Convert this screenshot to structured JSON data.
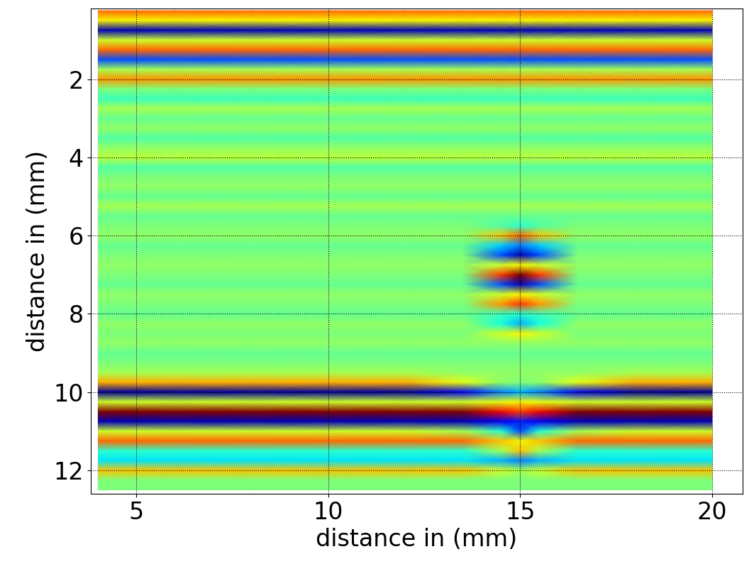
{
  "chart_data": {
    "type": "heatmap",
    "x_label": "distance in (mm)",
    "y_label": "distance in (mm)",
    "xlim": [
      3.8,
      20.8
    ],
    "ylim": [
      12.6,
      0.2
    ],
    "xticks": [
      5,
      10,
      15,
      20
    ],
    "yticks": [
      2,
      4,
      6,
      8,
      10,
      12
    ],
    "grid": true,
    "color": "jet",
    "value_range": [
      -1,
      1
    ],
    "x": [
      4,
      6,
      8,
      10,
      12,
      13.5,
      14.5,
      15,
      15.5,
      16.5,
      18,
      20
    ],
    "y": [
      0.25,
      0.5,
      0.75,
      1.0,
      1.25,
      1.5,
      1.75,
      2.0,
      2.25,
      2.5,
      2.75,
      3.0,
      3.25,
      3.5,
      3.75,
      4.0,
      4.25,
      4.5,
      4.75,
      5.0,
      5.25,
      5.5,
      5.75,
      6.0,
      6.25,
      6.5,
      6.75,
      7.0,
      7.25,
      7.5,
      7.75,
      8.0,
      8.25,
      8.5,
      8.75,
      9.0,
      9.25,
      9.5,
      9.75,
      10.0,
      10.25,
      10.5,
      10.75,
      11.0,
      11.25,
      11.5,
      11.75,
      12.0,
      12.25,
      12.5
    ],
    "cells": [
      [
        0.6,
        0.6,
        0.6,
        0.6,
        0.6,
        0.6,
        0.6,
        0.6,
        0.6,
        0.6,
        0.6,
        0.6
      ],
      [
        0.3,
        0.3,
        0.3,
        0.3,
        0.3,
        0.3,
        0.3,
        0.3,
        0.3,
        0.3,
        0.3,
        0.3
      ],
      [
        -0.9,
        -0.9,
        -0.9,
        -0.9,
        -0.9,
        -0.9,
        -0.9,
        -0.9,
        -0.9,
        -0.9,
        -0.9,
        -0.9
      ],
      [
        0.2,
        0.2,
        0.2,
        0.2,
        0.2,
        0.2,
        0.2,
        0.2,
        0.2,
        0.2,
        0.2,
        0.2
      ],
      [
        0.6,
        0.6,
        0.6,
        0.6,
        0.6,
        0.6,
        0.6,
        0.6,
        0.6,
        0.6,
        0.6,
        0.6
      ],
      [
        -0.6,
        -0.6,
        -0.6,
        -0.6,
        -0.6,
        -0.6,
        -0.6,
        -0.6,
        -0.6,
        -0.6,
        -0.6,
        -0.6
      ],
      [
        0.1,
        0.1,
        0.1,
        0.1,
        0.1,
        0.1,
        0.1,
        0.1,
        0.1,
        0.1,
        0.1,
        0.1
      ],
      [
        0.5,
        0.5,
        0.5,
        0.5,
        0.5,
        0.5,
        0.5,
        0.5,
        0.5,
        0.5,
        0.5,
        0.5
      ],
      [
        0.0,
        0.0,
        0.0,
        0.0,
        0.0,
        0.0,
        0.0,
        0.0,
        0.0,
        0.0,
        0.0,
        0.0
      ],
      [
        -0.15,
        -0.15,
        -0.15,
        -0.15,
        -0.15,
        -0.15,
        -0.15,
        -0.15,
        -0.15,
        -0.15,
        -0.15,
        -0.15
      ],
      [
        0.1,
        0.1,
        0.1,
        0.1,
        0.1,
        0.1,
        0.1,
        0.1,
        0.1,
        0.1,
        0.1,
        0.1
      ],
      [
        -0.05,
        -0.05,
        -0.05,
        -0.05,
        -0.05,
        -0.05,
        -0.05,
        -0.05,
        -0.05,
        -0.05,
        -0.05,
        -0.05
      ],
      [
        0.05,
        0.05,
        0.05,
        0.05,
        0.05,
        0.05,
        0.05,
        0.05,
        0.05,
        0.05,
        0.05,
        0.05
      ],
      [
        -0.1,
        -0.1,
        -0.1,
        -0.1,
        -0.1,
        -0.1,
        -0.1,
        -0.1,
        -0.1,
        -0.1,
        -0.1,
        -0.1
      ],
      [
        0.05,
        0.05,
        0.05,
        0.05,
        0.05,
        0.05,
        0.05,
        0.05,
        0.05,
        0.05,
        0.05,
        0.05
      ],
      [
        0.15,
        0.15,
        0.15,
        0.15,
        0.15,
        0.15,
        0.15,
        0.15,
        0.15,
        0.15,
        0.15,
        0.15
      ],
      [
        -0.1,
        -0.1,
        -0.1,
        -0.1,
        -0.1,
        -0.1,
        -0.1,
        -0.1,
        -0.1,
        -0.1,
        -0.1,
        -0.1
      ],
      [
        0.0,
        0.0,
        0.0,
        0.0,
        0.0,
        0.0,
        0.0,
        0.0,
        0.0,
        0.0,
        0.0,
        0.0
      ],
      [
        0.05,
        0.05,
        0.05,
        0.05,
        0.05,
        0.05,
        0.05,
        0.05,
        0.05,
        0.05,
        0.05,
        0.05
      ],
      [
        -0.05,
        -0.05,
        -0.05,
        -0.05,
        -0.05,
        -0.05,
        -0.05,
        -0.05,
        -0.05,
        -0.05,
        -0.05,
        -0.05
      ],
      [
        0.1,
        0.1,
        0.1,
        0.1,
        0.1,
        0.1,
        0.1,
        0.1,
        0.1,
        0.1,
        0.1,
        0.1
      ],
      [
        -0.05,
        -0.05,
        -0.05,
        -0.05,
        -0.05,
        -0.05,
        -0.05,
        -0.05,
        -0.05,
        -0.05,
        -0.05,
        -0.05
      ],
      [
        0.0,
        0.0,
        0.0,
        0.0,
        0.0,
        0.0,
        -0.1,
        -0.2,
        -0.1,
        0.0,
        0.0,
        0.0
      ],
      [
        0.05,
        0.05,
        0.05,
        0.05,
        0.05,
        0.05,
        0.4,
        0.6,
        0.4,
        0.05,
        0.05,
        0.05
      ],
      [
        -0.05,
        -0.05,
        -0.05,
        -0.05,
        -0.05,
        -0.05,
        -0.35,
        -0.5,
        -0.35,
        -0.05,
        -0.05,
        -0.05
      ],
      [
        0.0,
        0.0,
        0.0,
        0.0,
        0.0,
        0.0,
        -0.6,
        -0.9,
        -0.6,
        0.0,
        0.0,
        0.0
      ],
      [
        0.05,
        0.05,
        0.05,
        0.05,
        0.05,
        0.05,
        0.2,
        0.3,
        0.2,
        0.05,
        0.05,
        0.05
      ],
      [
        0.0,
        0.0,
        0.0,
        0.0,
        0.0,
        0.0,
        0.7,
        1.0,
        0.7,
        0.0,
        0.0,
        0.0
      ],
      [
        -0.05,
        -0.05,
        -0.05,
        -0.05,
        -0.05,
        -0.05,
        -0.6,
        -0.9,
        -0.6,
        -0.05,
        -0.05,
        -0.05
      ],
      [
        0.05,
        0.05,
        0.05,
        0.05,
        0.05,
        0.05,
        0.2,
        0.3,
        0.2,
        0.05,
        0.05,
        0.05
      ],
      [
        0.0,
        0.0,
        0.0,
        0.0,
        0.0,
        0.0,
        0.5,
        0.7,
        0.5,
        0.0,
        0.0,
        0.0
      ],
      [
        -0.05,
        -0.05,
        -0.05,
        -0.05,
        -0.05,
        -0.05,
        -0.15,
        -0.2,
        -0.15,
        -0.05,
        -0.05,
        -0.05
      ],
      [
        0.05,
        0.05,
        0.05,
        0.05,
        0.05,
        0.05,
        -0.25,
        -0.4,
        -0.25,
        0.05,
        0.05,
        0.05
      ],
      [
        0.0,
        0.0,
        0.0,
        0.0,
        0.0,
        0.0,
        0.2,
        0.3,
        0.2,
        0.0,
        0.0,
        0.0
      ],
      [
        0.05,
        0.05,
        0.05,
        0.05,
        0.05,
        0.05,
        0.05,
        0.05,
        0.05,
        0.05,
        0.05,
        0.05
      ],
      [
        -0.05,
        -0.05,
        -0.05,
        -0.05,
        -0.05,
        -0.05,
        -0.05,
        -0.05,
        -0.05,
        -0.05,
        -0.05,
        -0.05
      ],
      [
        0.0,
        0.0,
        0.0,
        0.0,
        0.0,
        0.0,
        0.0,
        0.0,
        0.0,
        0.0,
        0.0,
        0.0
      ],
      [
        0.1,
        0.1,
        0.1,
        0.1,
        0.1,
        0.05,
        0.05,
        0.05,
        0.05,
        0.05,
        0.1,
        0.1
      ],
      [
        0.45,
        0.45,
        0.45,
        0.45,
        0.45,
        0.25,
        0.05,
        0.0,
        0.05,
        0.25,
        0.45,
        0.45
      ],
      [
        -0.95,
        -0.95,
        -0.95,
        -0.95,
        -0.95,
        -0.8,
        -0.5,
        -0.4,
        -0.5,
        -0.8,
        -0.95,
        -0.95
      ],
      [
        0.2,
        0.2,
        0.2,
        0.2,
        0.2,
        0.2,
        0.25,
        0.3,
        0.25,
        0.2,
        0.2,
        0.2
      ],
      [
        1.0,
        1.0,
        1.0,
        1.0,
        1.0,
        1.0,
        0.8,
        0.7,
        0.8,
        1.0,
        1.0,
        1.0
      ],
      [
        -0.9,
        -0.9,
        -0.9,
        -0.9,
        -0.9,
        -0.9,
        -0.8,
        -0.7,
        -0.8,
        -0.9,
        -0.9,
        -0.9
      ],
      [
        0.2,
        0.2,
        0.2,
        0.2,
        0.2,
        0.1,
        -0.2,
        -0.6,
        -0.2,
        0.1,
        0.2,
        0.2
      ],
      [
        0.6,
        0.6,
        0.6,
        0.6,
        0.6,
        0.6,
        0.4,
        0.3,
        0.4,
        0.6,
        0.6,
        0.6
      ],
      [
        -0.2,
        -0.2,
        -0.2,
        -0.2,
        -0.2,
        -0.2,
        0.1,
        0.4,
        0.1,
        -0.2,
        -0.2,
        -0.2
      ],
      [
        -0.3,
        -0.3,
        -0.3,
        -0.3,
        -0.3,
        -0.3,
        -0.4,
        -0.5,
        -0.4,
        -0.3,
        -0.3,
        -0.3
      ],
      [
        0.4,
        0.4,
        0.4,
        0.4,
        0.4,
        0.4,
        0.2,
        0.1,
        0.2,
        0.4,
        0.4,
        0.4
      ],
      [
        0.0,
        0.0,
        0.0,
        0.0,
        0.0,
        0.0,
        0.0,
        0.0,
        0.0,
        0.0,
        0.0,
        0.0
      ],
      [
        0.0,
        0.0,
        0.0,
        0.0,
        0.0,
        0.0,
        0.0,
        0.0,
        0.0,
        0.0,
        0.0,
        0.0
      ]
    ]
  }
}
